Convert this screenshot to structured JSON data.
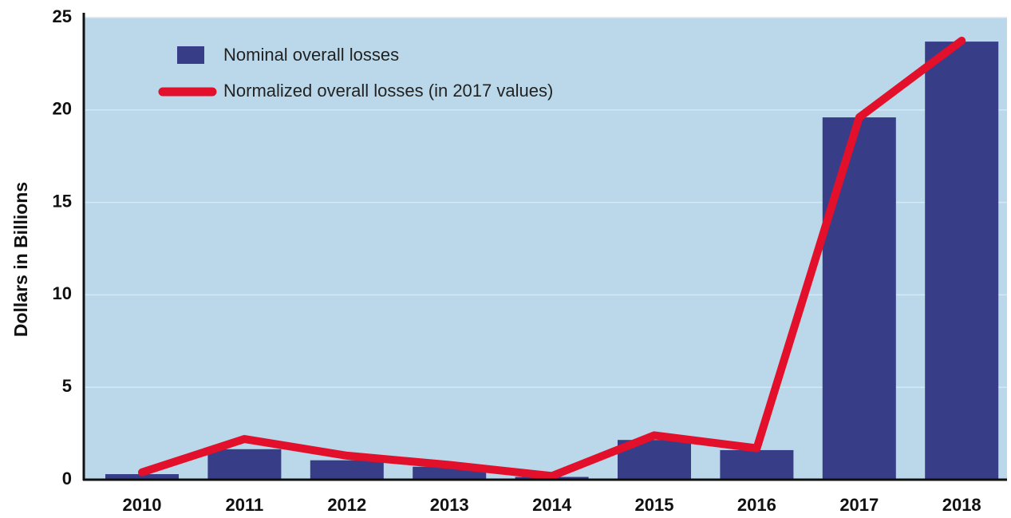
{
  "chart_data": {
    "type": "bar_line",
    "y_label": "Dollars in Billions",
    "categories": [
      "2010",
      "2011",
      "2012",
      "2013",
      "2014",
      "2015",
      "2016",
      "2017",
      "2018"
    ],
    "series": [
      {
        "name": "Nominal overall losses",
        "type": "bar",
        "color": "#373d87",
        "values": [
          0.3,
          1.65,
          1.05,
          0.7,
          0.15,
          2.15,
          1.6,
          19.6,
          23.7
        ]
      },
      {
        "name": "Normalized overall losses (in 2017 values)",
        "type": "line",
        "color": "#e3102b",
        "values": [
          0.4,
          2.2,
          1.3,
          0.8,
          0.2,
          2.4,
          1.7,
          19.6,
          23.75
        ]
      }
    ],
    "ylim": [
      0,
      25
    ],
    "yticks": [
      0,
      5,
      10,
      15,
      20,
      25
    ],
    "grid": true
  }
}
